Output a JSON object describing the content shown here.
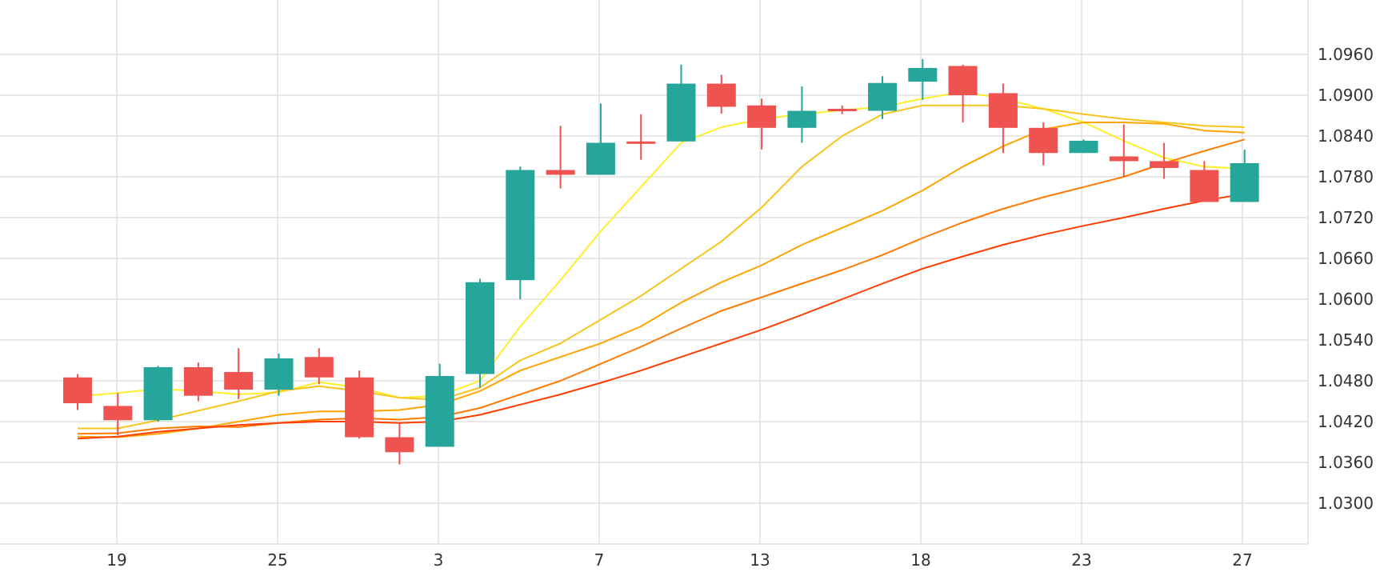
{
  "chart_data": {
    "type": "candlestick",
    "title": "",
    "xlabel": "",
    "ylabel": "",
    "x_tick_labels": [
      "19",
      "25",
      "3",
      "7",
      "13",
      "18",
      "23",
      "27"
    ],
    "y_tick_labels": [
      "1.0300",
      "1.0360",
      "1.0420",
      "1.0480",
      "1.0540",
      "1.0600",
      "1.0660",
      "1.0720",
      "1.0780",
      "1.0840",
      "1.0900",
      "1.0960"
    ],
    "ylim": [
      1.024,
      1.104
    ],
    "grid": true,
    "y_axis_position": "right",
    "colors": {
      "up": "#26a69a",
      "down": "#ef5350",
      "grid": "#e0e0e0",
      "axis_text": "#333333"
    },
    "candles": [
      {
        "open": 1.0485,
        "high": 1.049,
        "low": 1.0437,
        "close": 1.0447
      },
      {
        "open": 1.0443,
        "high": 1.0462,
        "low": 1.04,
        "close": 1.0422
      },
      {
        "open": 1.0422,
        "high": 1.0502,
        "low": 1.042,
        "close": 1.05
      },
      {
        "open": 1.05,
        "high": 1.0507,
        "low": 1.045,
        "close": 1.0458
      },
      {
        "open": 1.0493,
        "high": 1.0528,
        "low": 1.0453,
        "close": 1.0467
      },
      {
        "open": 1.0467,
        "high": 1.052,
        "low": 1.0458,
        "close": 1.0513
      },
      {
        "open": 1.0515,
        "high": 1.0528,
        "low": 1.0475,
        "close": 1.0485
      },
      {
        "open": 1.0485,
        "high": 1.0495,
        "low": 1.0395,
        "close": 1.0397
      },
      {
        "open": 1.0397,
        "high": 1.0417,
        "low": 1.0357,
        "close": 1.0375
      },
      {
        "open": 1.0383,
        "high": 1.0505,
        "low": 1.0383,
        "close": 1.0487
      },
      {
        "open": 1.049,
        "high": 1.063,
        "low": 1.047,
        "close": 1.0625
      },
      {
        "open": 1.0628,
        "high": 1.0795,
        "low": 1.06,
        "close": 1.079
      },
      {
        "open": 1.079,
        "high": 1.0855,
        "low": 1.0763,
        "close": 1.0783
      },
      {
        "open": 1.0783,
        "high": 1.0888,
        "low": 1.0783,
        "close": 1.083
      },
      {
        "open": 1.0832,
        "high": 1.0872,
        "low": 1.0805,
        "close": 1.083
      },
      {
        "open": 1.0832,
        "high": 1.0945,
        "low": 1.0832,
        "close": 1.0917
      },
      {
        "open": 1.0917,
        "high": 1.093,
        "low": 1.0873,
        "close": 1.0883
      },
      {
        "open": 1.0885,
        "high": 1.0895,
        "low": 1.082,
        "close": 1.0852
      },
      {
        "open": 1.0852,
        "high": 1.0913,
        "low": 1.083,
        "close": 1.0877
      },
      {
        "open": 1.088,
        "high": 1.0885,
        "low": 1.0872,
        "close": 1.0878
      },
      {
        "open": 1.0877,
        "high": 1.0928,
        "low": 1.0865,
        "close": 1.0918
      },
      {
        "open": 1.092,
        "high": 1.0953,
        "low": 1.0893,
        "close": 1.094
      },
      {
        "open": 1.0943,
        "high": 1.0945,
        "low": 1.086,
        "close": 1.09
      },
      {
        "open": 1.0903,
        "high": 1.0917,
        "low": 1.0815,
        "close": 1.0852
      },
      {
        "open": 1.0852,
        "high": 1.086,
        "low": 1.0797,
        "close": 1.0815
      },
      {
        "open": 1.0815,
        "high": 1.0835,
        "low": 1.0815,
        "close": 1.0833
      },
      {
        "open": 1.081,
        "high": 1.0857,
        "low": 1.078,
        "close": 1.0803
      },
      {
        "open": 1.0803,
        "high": 1.083,
        "low": 1.0777,
        "close": 1.0793
      },
      {
        "open": 1.079,
        "high": 1.0803,
        "low": 1.0743,
        "close": 1.0743
      },
      {
        "open": 1.0743,
        "high": 1.082,
        "low": 1.0743,
        "close": 1.08
      }
    ],
    "series": [
      {
        "color": "#ffee2a",
        "values": [
          1.0457,
          1.0462,
          1.0468,
          1.0465,
          1.046,
          1.0463,
          1.0478,
          1.047,
          1.0455,
          1.0458,
          1.048,
          1.056,
          1.0628,
          1.07,
          1.0765,
          1.083,
          1.0853,
          1.0865,
          1.0872,
          1.0878,
          1.0883,
          1.0895,
          1.0905,
          1.0895,
          1.088,
          1.086,
          1.0833,
          1.0808,
          1.0795,
          1.0792
        ]
      },
      {
        "color": "#f6c51a",
        "values": [
          1.041,
          1.041,
          1.0422,
          1.0436,
          1.045,
          1.0465,
          1.0472,
          1.0465,
          1.0455,
          1.0452,
          1.047,
          1.051,
          1.0535,
          1.057,
          1.0605,
          1.0645,
          1.0685,
          1.0735,
          1.0795,
          1.084,
          1.0872,
          1.0885,
          1.0885,
          1.0885,
          1.088,
          1.0872,
          1.0865,
          1.086,
          1.0855,
          1.0853
        ]
      },
      {
        "color": "#ffa500",
        "values": [
          1.0398,
          1.0397,
          1.0402,
          1.041,
          1.042,
          1.043,
          1.0435,
          1.0435,
          1.0437,
          1.0445,
          1.0465,
          1.0495,
          1.0515,
          1.0535,
          1.056,
          1.0595,
          1.0625,
          1.065,
          1.068,
          1.0705,
          1.073,
          1.076,
          1.0795,
          1.0825,
          1.085,
          1.086,
          1.086,
          1.0858,
          1.0848,
          1.0845
        ]
      },
      {
        "color": "#ff7a00",
        "values": [
          1.0402,
          1.0403,
          1.041,
          1.0413,
          1.0412,
          1.0418,
          1.0423,
          1.0425,
          1.0423,
          1.0427,
          1.044,
          1.046,
          1.048,
          1.0505,
          1.053,
          1.0557,
          1.0583,
          1.0603,
          1.0623,
          1.0643,
          1.0665,
          1.069,
          1.0713,
          1.0733,
          1.075,
          1.0765,
          1.078,
          1.08,
          1.0818,
          1.0835
        ]
      },
      {
        "color": "#ff3d00",
        "values": [
          1.0395,
          1.0398,
          1.0405,
          1.041,
          1.0415,
          1.0418,
          1.042,
          1.042,
          1.0418,
          1.042,
          1.043,
          1.0445,
          1.046,
          1.0477,
          1.0495,
          1.0515,
          1.0535,
          1.0555,
          1.0577,
          1.06,
          1.0623,
          1.0645,
          1.0663,
          1.068,
          1.0695,
          1.0708,
          1.072,
          1.0733,
          1.0745,
          1.0755
        ]
      }
    ]
  }
}
